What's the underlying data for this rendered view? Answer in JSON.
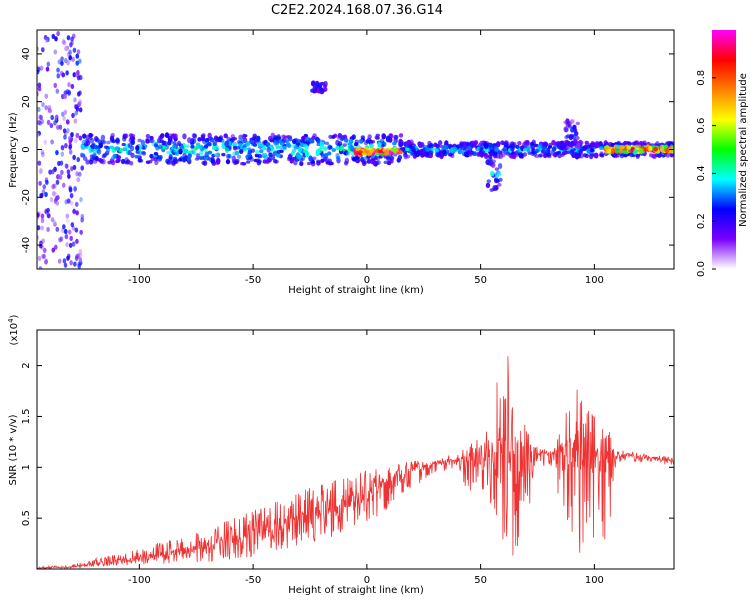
{
  "title": "C2E2.2024.168.07.36.G14",
  "chart_data": [
    {
      "type": "heatmap",
      "xlabel": "Height of straight line (km)",
      "ylabel": "Frequency (Hz)",
      "xlim": [
        -145,
        135
      ],
      "ylim": [
        -50,
        50
      ],
      "xticks": [
        -100,
        -50,
        0,
        50,
        100
      ],
      "yticks": [
        -40,
        -20,
        0,
        20,
        40
      ],
      "colorbar": {
        "label": "Normalized spectral amplitude",
        "range": [
          0.0,
          1.0
        ],
        "ticks": [
          0.0,
          0.2,
          0.4,
          0.6,
          0.8
        ],
        "colors": [
          "#ffffff",
          "#7b00ff",
          "#0000ff",
          "#00ffff",
          "#00ff00",
          "#ffff00",
          "#ff7f00",
          "#ff0000",
          "#ff00ff"
        ]
      },
      "features": [
        {
          "x_range": [
            -145,
            -125
          ],
          "freq_range": [
            -50,
            50
          ],
          "amplitude": 0.15
        },
        {
          "x_range": [
            -125,
            15
          ],
          "freq_center": 0,
          "freq_halfwidth": 6,
          "amplitude": 0.35
        },
        {
          "x_range": [
            15,
            135
          ],
          "freq_center": 0,
          "freq_halfwidth": 3,
          "amplitude": 0.3
        },
        {
          "x_range": [
            -5,
            15
          ],
          "freq_center": -1,
          "freq_halfwidth": 1,
          "amplitude": 0.95
        },
        {
          "x_range": [
            105,
            135
          ],
          "freq_center": 0,
          "freq_halfwidth": 1,
          "amplitude": 0.85
        },
        {
          "x": -21,
          "freq_center": 26,
          "freq_halfwidth": 2,
          "amplitude": 0.25
        },
        {
          "x": 56,
          "freq_center": -10,
          "freq_halfwidth": 8,
          "amplitude": 0.3
        },
        {
          "x": 90,
          "freq_center": 6,
          "freq_halfwidth": 6,
          "amplitude": 0.25
        }
      ]
    },
    {
      "type": "line",
      "xlabel": "Height of straight line (km)",
      "ylabel": "SNR (10 * v/v)",
      "y_scale_label": "(x10",
      "y_scale_exponent": "4",
      "y_scale_suffix": ")",
      "xlim": [
        -145,
        135
      ],
      "ylim": [
        0,
        2.35
      ],
      "xticks": [
        -100,
        -50,
        0,
        50,
        100
      ],
      "yticks": [
        0.5,
        1.0,
        1.5,
        2.0
      ],
      "color": "#ee3333",
      "x": [
        -145,
        -130,
        -120,
        -110,
        -100,
        -90,
        -80,
        -70,
        -60,
        -50,
        -40,
        -30,
        -20,
        -10,
        0,
        10,
        20,
        30,
        40,
        44,
        50,
        56,
        60,
        64,
        68,
        75,
        82,
        86,
        90,
        94,
        98,
        102,
        106,
        110,
        120,
        135
      ],
      "y": [
        0.01,
        0.02,
        0.05,
        0.08,
        0.1,
        0.14,
        0.18,
        0.22,
        0.28,
        0.33,
        0.4,
        0.48,
        0.55,
        0.63,
        0.72,
        0.85,
        0.97,
        1.03,
        1.08,
        1.1,
        1.12,
        1.15,
        1.1,
        1.14,
        1.12,
        1.15,
        1.13,
        1.12,
        1.1,
        1.13,
        1.11,
        1.12,
        1.1,
        1.12,
        1.1,
        1.07
      ],
      "envelope_max": [
        0.02,
        0.04,
        0.1,
        0.15,
        0.2,
        0.27,
        0.33,
        0.4,
        0.5,
        0.58,
        0.67,
        0.78,
        0.85,
        0.92,
        0.97,
        1.0,
        1.07,
        1.09,
        1.14,
        1.2,
        1.45,
        1.9,
        2.35,
        2.2,
        1.75,
        1.2,
        1.15,
        1.45,
        1.75,
        1.85,
        1.65,
        1.5,
        1.4,
        1.18,
        1.14,
        1.1
      ],
      "envelope_min": [
        0.0,
        0.01,
        0.02,
        0.03,
        0.04,
        0.05,
        0.06,
        0.07,
        0.09,
        0.12,
        0.16,
        0.22,
        0.28,
        0.36,
        0.45,
        0.6,
        0.8,
        0.94,
        1.0,
        0.75,
        0.8,
        0.5,
        0.1,
        0.05,
        0.25,
        1.0,
        1.0,
        0.4,
        0.15,
        0.1,
        0.2,
        0.35,
        0.1,
        1.05,
        1.05,
        1.02
      ]
    }
  ]
}
